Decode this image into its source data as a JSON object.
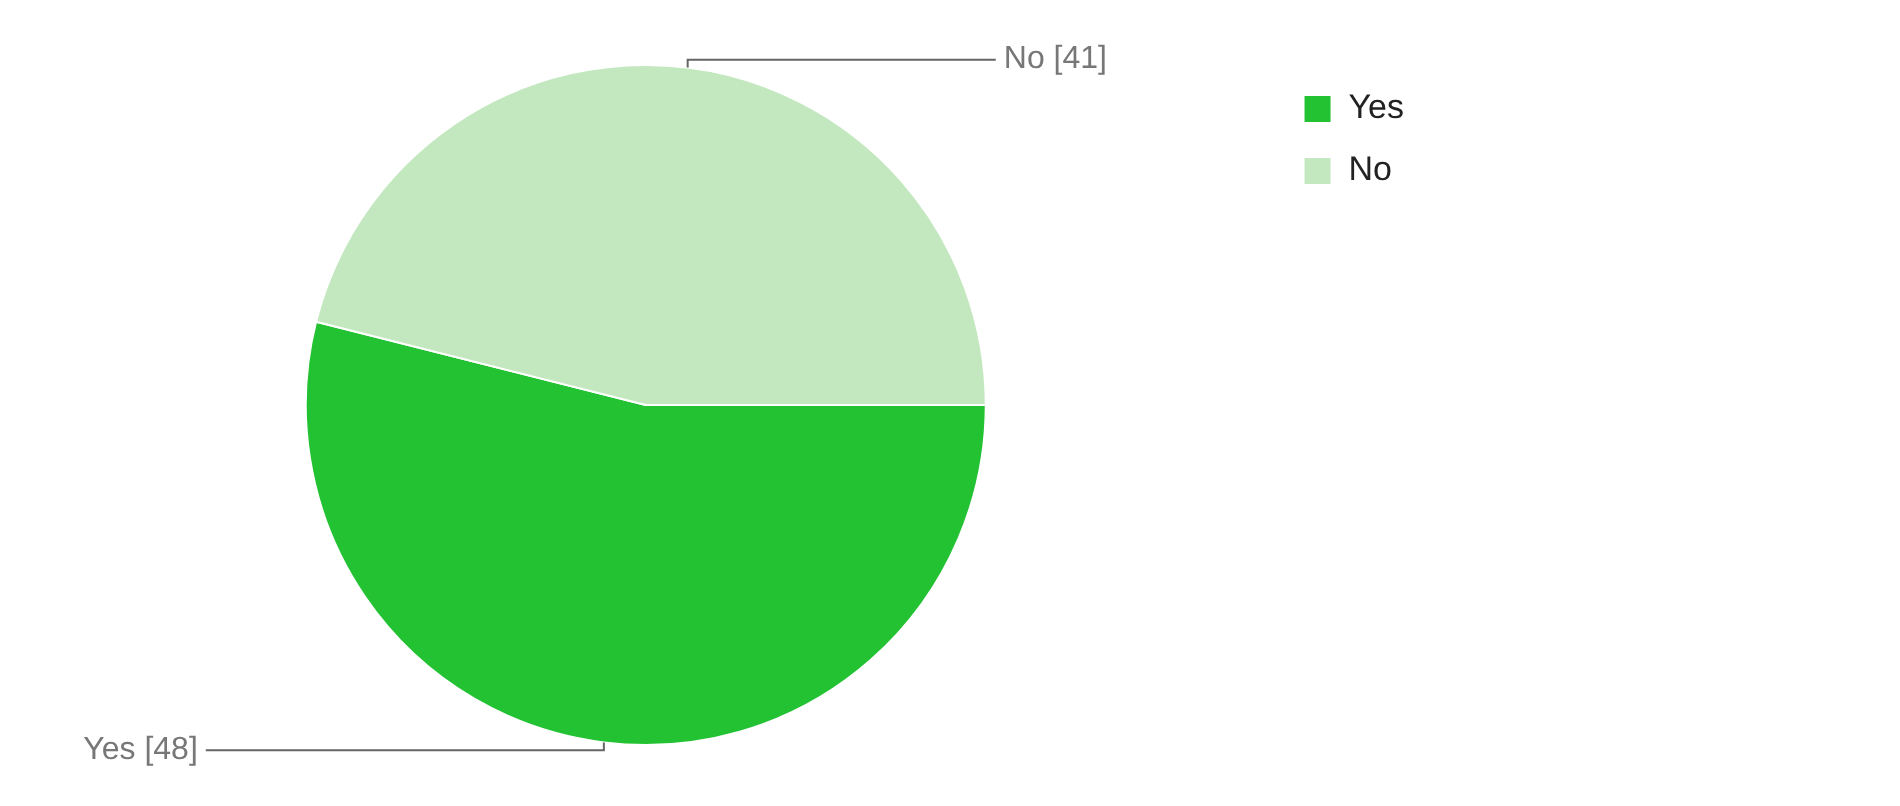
{
  "chart_data": {
    "type": "pie",
    "categories": [
      "Yes",
      "No"
    ],
    "values": [
      48,
      41
    ],
    "colors": [
      "#22c232",
      "#c3e8bf"
    ],
    "value_labels": [
      "Yes [48]",
      "No [41]"
    ],
    "legend": "top right"
  }
}
